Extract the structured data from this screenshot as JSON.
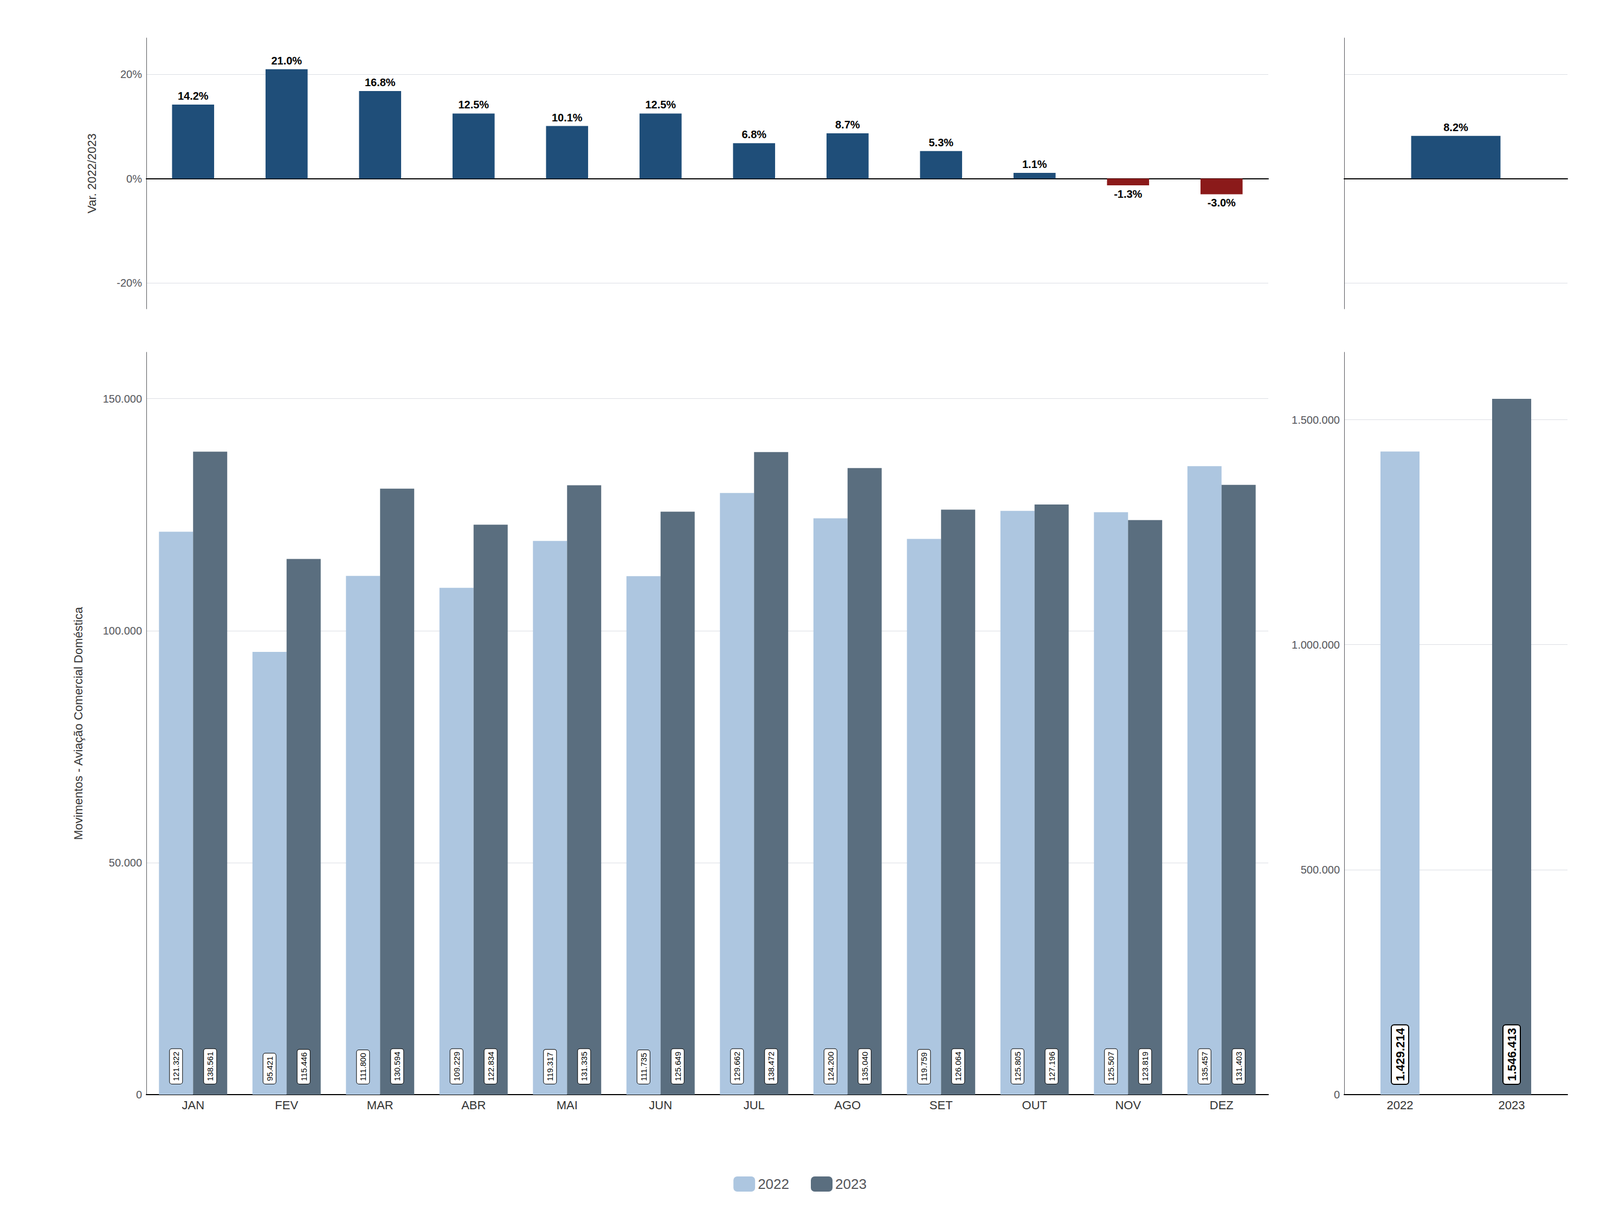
{
  "chart_data": [
    {
      "type": "bar",
      "ylabel": "Var. 2022/2023",
      "categories": [
        "JAN",
        "FEV",
        "MAR",
        "ABR",
        "MAI",
        "JUN",
        "JUL",
        "AGO",
        "SET",
        "OUT",
        "NOV",
        "DEZ"
      ],
      "values": [
        14.2,
        21.0,
        16.8,
        12.5,
        10.1,
        12.5,
        6.8,
        8.7,
        5.3,
        1.1,
        -1.3,
        -3.0
      ],
      "value_labels": [
        "14.2%",
        "21.0%",
        "16.8%",
        "12.5%",
        "10.1%",
        "12.5%",
        "6.8%",
        "8.7%",
        "5.3%",
        "1.1%",
        "-1.3%",
        "-3.0%"
      ],
      "colors": [
        "#1f4e79",
        "#1f4e79",
        "#1f4e79",
        "#1f4e79",
        "#1f4e79",
        "#1f4e79",
        "#1f4e79",
        "#1f4e79",
        "#1f4e79",
        "#1f4e79",
        "#8b1a1a",
        "#8b1a1a"
      ],
      "ylim": [
        -25,
        27
      ],
      "yticks": [
        {
          "value": -20,
          "label": "-20%"
        },
        {
          "value": 0,
          "label": "0%"
        },
        {
          "value": 20,
          "label": "20%"
        }
      ],
      "grid": true,
      "data_labels": true,
      "tick_labels": "y"
    },
    {
      "type": "bar",
      "categories": [
        null
      ],
      "values": [
        8.2
      ],
      "value_labels": [
        "8.2%"
      ],
      "color": "#1f4e79",
      "ylim": [
        -25,
        27
      ],
      "yticks": [
        -20,
        0,
        20
      ],
      "grid": true,
      "data_labels": true,
      "tick_labels": false
    },
    {
      "type": "bar",
      "ylabel": "Movimentos - Aviação Comercial Doméstica",
      "categories": [
        "JAN",
        "FEV",
        "MAR",
        "ABR",
        "MAI",
        "JUN",
        "JUL",
        "AGO",
        "SET",
        "OUT",
        "NOV",
        "DEZ"
      ],
      "series": [
        {
          "name": "2022",
          "color": "#adc6e0",
          "values": [
            121322,
            95421,
            111800,
            109229,
            119317,
            111735,
            129662,
            124200,
            119759,
            125805,
            125507,
            135457
          ],
          "value_labels": [
            "121.322",
            "95.421",
            "111.800",
            "109.229",
            "119.317",
            "111.735",
            "129.662",
            "124.200",
            "119.759",
            "125.805",
            "125.507",
            "135.457"
          ]
        },
        {
          "name": "2023",
          "color": "#5a6e7f",
          "values": [
            138561,
            115446,
            130594,
            122834,
            131335,
            125649,
            138472,
            135040,
            126064,
            127196,
            123819,
            131403
          ],
          "value_labels": [
            "138.561",
            "115.446",
            "130.594",
            "122.834",
            "131.335",
            "125.649",
            "138.472",
            "135.040",
            "126.064",
            "127.196",
            "123.819",
            "131.403"
          ]
        }
      ],
      "ylim": [
        0,
        160000
      ],
      "yticks": [
        0,
        {
          "value": 50000,
          "label": "50.000"
        },
        {
          "value": 100000,
          "label": "100.000"
        },
        {
          "value": 150000,
          "label": "150.000"
        }
      ],
      "grid": true,
      "data_labels": true,
      "legend": "bottom"
    },
    {
      "type": "bar",
      "categories": [
        "2022",
        "2023"
      ],
      "values": [
        1429214,
        1546413
      ],
      "value_labels": [
        "1.429.214",
        "1.546.413"
      ],
      "colors": [
        "#adc6e0",
        "#5a6e7f"
      ],
      "ylim": [
        0,
        1650000
      ],
      "yticks": [
        0,
        {
          "value": 500000,
          "label": "500.000"
        },
        {
          "value": 1000000,
          "label": "1.000.000"
        },
        {
          "value": 1500000,
          "label": "1.500.000"
        }
      ],
      "grid": true,
      "data_labels": true
    }
  ]
}
